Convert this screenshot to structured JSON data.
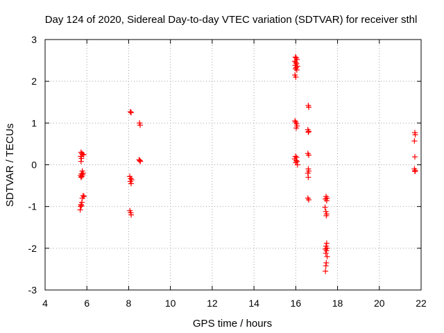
{
  "chart_data": {
    "type": "scatter",
    "title": "Day 124 of 2020, Sidereal Day-to-day VTEC variation (SDTVAR) for receiver sthl",
    "xlabel": "GPS time / hours",
    "ylabel": "SDTVAR / TECUs",
    "xlim": [
      4,
      22
    ],
    "ylim": [
      -3,
      3
    ],
    "xticks": [
      4,
      6,
      8,
      10,
      12,
      14,
      16,
      18,
      20,
      22
    ],
    "yticks": [
      -3,
      -2,
      -1,
      0,
      1,
      2,
      3
    ],
    "grid": true,
    "marker": "+",
    "colors": {
      "points": "#ff0000",
      "grid": "#a0a0a0",
      "axis": "#000000"
    },
    "series": [
      {
        "name": "SDTVAR",
        "points": [
          [
            5.72,
            0.3
          ],
          [
            5.76,
            0.27
          ],
          [
            5.8,
            0.25
          ],
          [
            5.85,
            0.24
          ],
          [
            5.7,
            0.2
          ],
          [
            5.74,
            0.15
          ],
          [
            5.72,
            0.08
          ],
          [
            5.78,
            -0.15
          ],
          [
            5.82,
            -0.2
          ],
          [
            5.74,
            -0.22
          ],
          [
            5.7,
            -0.26
          ],
          [
            5.76,
            -0.28
          ],
          [
            5.72,
            -0.3
          ],
          [
            5.8,
            -0.24
          ],
          [
            5.82,
            -0.74
          ],
          [
            5.86,
            -0.76
          ],
          [
            5.78,
            -0.8
          ],
          [
            5.76,
            -0.9
          ],
          [
            5.72,
            -0.95
          ],
          [
            5.7,
            -1.0
          ],
          [
            5.74,
            -0.98
          ],
          [
            5.68,
            -1.08
          ],
          [
            8.08,
            1.27
          ],
          [
            8.12,
            1.25
          ],
          [
            8.05,
            -0.28
          ],
          [
            8.1,
            -0.33
          ],
          [
            8.14,
            -0.36
          ],
          [
            8.08,
            -0.4
          ],
          [
            8.12,
            -0.45
          ],
          [
            8.06,
            -1.1
          ],
          [
            8.1,
            -1.15
          ],
          [
            8.12,
            -1.2
          ],
          [
            8.52,
            1.0
          ],
          [
            8.55,
            0.95
          ],
          [
            8.5,
            0.12
          ],
          [
            8.54,
            0.1
          ],
          [
            8.56,
            0.08
          ],
          [
            15.98,
            2.58
          ],
          [
            16.02,
            2.56
          ],
          [
            16.06,
            2.52
          ],
          [
            15.95,
            2.48
          ],
          [
            16.0,
            2.45
          ],
          [
            16.04,
            2.42
          ],
          [
            15.97,
            2.38
          ],
          [
            16.08,
            2.36
          ],
          [
            16.02,
            2.33
          ],
          [
            15.99,
            2.3
          ],
          [
            16.05,
            2.27
          ],
          [
            15.96,
            2.15
          ],
          [
            16.0,
            2.1
          ],
          [
            15.96,
            1.05
          ],
          [
            16.0,
            1.02
          ],
          [
            16.04,
            0.98
          ],
          [
            16.06,
            0.93
          ],
          [
            16.02,
            0.88
          ],
          [
            15.98,
            0.2
          ],
          [
            16.04,
            0.18
          ],
          [
            15.95,
            0.14
          ],
          [
            16.02,
            0.1
          ],
          [
            16.06,
            0.08
          ],
          [
            16.0,
            0.05
          ],
          [
            16.08,
            0.0
          ],
          [
            16.6,
            1.42
          ],
          [
            16.62,
            1.38
          ],
          [
            16.58,
            0.84
          ],
          [
            16.62,
            0.8
          ],
          [
            16.6,
            0.78
          ],
          [
            16.58,
            0.27
          ],
          [
            16.62,
            0.23
          ],
          [
            16.6,
            -0.1
          ],
          [
            16.62,
            -0.15
          ],
          [
            16.58,
            -0.2
          ],
          [
            16.6,
            -0.3
          ],
          [
            16.58,
            -0.8
          ],
          [
            16.62,
            -0.84
          ],
          [
            17.45,
            -0.76
          ],
          [
            17.5,
            -0.8
          ],
          [
            17.42,
            -0.82
          ],
          [
            17.48,
            -0.86
          ],
          [
            17.4,
            -1.02
          ],
          [
            17.44,
            -1.12
          ],
          [
            17.48,
            -1.18
          ],
          [
            17.46,
            -1.22
          ],
          [
            17.48,
            -1.88
          ],
          [
            17.45,
            -1.95
          ],
          [
            17.5,
            -2.0
          ],
          [
            17.42,
            -2.02
          ],
          [
            17.47,
            -2.06
          ],
          [
            17.44,
            -2.12
          ],
          [
            17.5,
            -2.2
          ],
          [
            17.46,
            -2.35
          ],
          [
            17.44,
            -2.42
          ],
          [
            17.42,
            -2.55
          ],
          [
            21.7,
            0.77
          ],
          [
            21.72,
            0.72
          ],
          [
            21.68,
            0.57
          ],
          [
            21.7,
            0.19
          ],
          [
            21.68,
            -0.1
          ],
          [
            21.72,
            -0.14
          ],
          [
            21.7,
            -0.16
          ]
        ]
      }
    ]
  }
}
